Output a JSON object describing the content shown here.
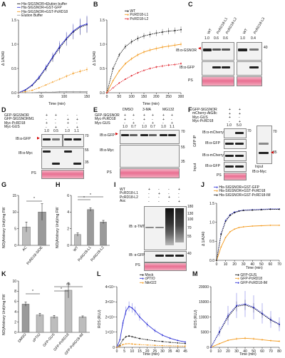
{
  "panels": {
    "A": {
      "letter": "A",
      "legend": [
        "His-SlGSNOR+Elution buffer",
        "His-SlGSNOR+GST-GFP",
        "His-SlGSNOR+GST-PcRD18",
        "Elution Buffer"
      ],
      "ylabel": "Δ 1/A340",
      "xlabel": "Time (min)",
      "yticks": [
        "0.0",
        "0.5",
        "1.0",
        "1.5"
      ],
      "xticks": [
        "0",
        "50",
        "100",
        "150"
      ]
    },
    "B": {
      "letter": "B",
      "legend": [
        "WT",
        "PcRD18-L1",
        "PcRD18-L2"
      ],
      "ylabel": "Δ 1/A340",
      "xlabel": "Time (min)",
      "yticks": [
        "0.0",
        "0.5",
        "1.0",
        "1.5"
      ],
      "xticks": [
        "0",
        "50",
        "100",
        "150",
        "200",
        "250",
        "300"
      ]
    },
    "C": {
      "letter": "C",
      "lanes": [
        "WT",
        "PcRD18-L1",
        "PcRD18-L2",
        "WT",
        "PcRD18-L3"
      ],
      "ratios": [
        "1.0",
        "0.6",
        "0.6",
        "1.0",
        "0.4"
      ],
      "blots": [
        "IB:α-GSNOR",
        "IB:α-GFP",
        "PS"
      ],
      "mw": [
        "40"
      ]
    },
    "D": {
      "letter": "D",
      "rows": [
        "GFP-SlGSNOR",
        "GFP-SlGSNORM1",
        "Myc-PcRD18",
        "Myc-GUS"
      ],
      "signs": [
        [
          "+",
          "+",
          "-",
          "-"
        ],
        [
          "-",
          "-",
          "+",
          "+"
        ],
        [
          "+",
          "-",
          "+",
          "-"
        ],
        [
          "-",
          "+",
          "-",
          "+"
        ]
      ],
      "ratios": [
        "1.0",
        "0.5",
        "1.0",
        "1.1"
      ],
      "blots": [
        "IB:α-GFP",
        "IB:α-Myc",
        "PS"
      ],
      "mw": [
        "70",
        "55",
        "35"
      ]
    },
    "E": {
      "letter": "E",
      "treatments": [
        "DMSO",
        "3-MA",
        "MG132"
      ],
      "rows": [
        "GFP-SlGSNOR",
        "Myc-PcRD18",
        "Myc-GUS"
      ],
      "signs": [
        [
          "+",
          "+",
          "+",
          "+",
          "+",
          "+"
        ],
        [
          "+",
          "-",
          "+",
          "-",
          "+",
          "-"
        ],
        [
          "-",
          "+",
          "-",
          "+",
          "-",
          "+"
        ]
      ],
      "ratios": [
        "1.0",
        "0.7",
        "1.0",
        "0.7",
        "1.0",
        "1.1"
      ],
      "blots": [
        "IB:α-GFP",
        "IB:α-Myc",
        "PS"
      ],
      "mw": [
        "70",
        "55",
        "35"
      ]
    },
    "F": {
      "letter": "F",
      "rows": [
        "GFP-SlGSNOR",
        "mCherry-AtG8c",
        "Myc-GUS",
        "Myc-PcRD18"
      ],
      "signs": [
        [
          "+",
          "+"
        ],
        [
          "+",
          "+"
        ],
        [
          "+",
          "-"
        ],
        [
          "-",
          "+"
        ]
      ],
      "ratios": [
        "1.0",
        "5.0"
      ],
      "blots": [
        "IB:α-mCherry",
        "IB:α-GFP",
        "IB:α-mCherry",
        "IB:α-GFP",
        "PS"
      ],
      "side": [
        "GFP IP",
        "Input"
      ],
      "inset": [
        "Input",
        "IB:α-Myc"
      ],
      "mw": [
        "70",
        "35"
      ]
    },
    "G": {
      "letter": "G",
      "ylabel": "NO(Arbitrary Unit)/mg FW",
      "categories": [
        "AC",
        "PcRD18-SlOE"
      ],
      "yticks": [
        "0",
        "5",
        "10",
        "15"
      ],
      "sig": "*"
    },
    "H": {
      "letter": "H",
      "ylabel": "NO(Arbitrary Unit)/mg FW",
      "categories": [
        "WT",
        "PcRD18-L1",
        "PcRD18-L2"
      ],
      "yticks": [
        "0",
        "2",
        "4",
        "6"
      ],
      "sig": "*"
    },
    "I": {
      "letter": "I",
      "rows": [
        "WT",
        "PcRD18-L1",
        "PcRD18-L2",
        "Asc"
      ],
      "signs": [
        [
          "+",
          "-",
          "-",
          "+"
        ],
        [
          "-",
          "+",
          "-",
          "-"
        ],
        [
          "-",
          "-",
          "+",
          "-"
        ],
        [
          "-",
          "-",
          "-",
          "+"
        ]
      ],
      "blots": [
        "IB: α-TMT",
        "IB: α-GFP",
        "PS"
      ],
      "mw": [
        "180",
        "130",
        "100",
        "70",
        "55",
        "40"
      ]
    },
    "J": {
      "letter": "J",
      "legend": [
        "His-SlGSNOR+GST-GFP",
        "His-SlGSNOR+GST-PcRD18",
        "His-SlGSNOR+GST-PcRD18-IM"
      ],
      "ylabel": "Δ 1/A340",
      "xlabel": "Time (min)",
      "yticks": [
        "0.0",
        "0.5",
        "1.0",
        "1.5"
      ],
      "xticks": [
        "0",
        "10",
        "20",
        "30",
        "40",
        "50",
        "60",
        "70"
      ]
    },
    "K": {
      "letter": "K",
      "ylabel": "NO(Arbitrary Unit)/mg FW",
      "categories": [
        "DMSO",
        "cPTIO",
        "GFP-GUS",
        "GFP-PcRD18",
        "GFP-PcRD18-IM"
      ],
      "yticks": [
        "0",
        "2",
        "4",
        "6",
        "8",
        "10"
      ],
      "sig": [
        "*",
        "ns"
      ]
    },
    "L": {
      "letter": "L",
      "legend": [
        "Mock",
        "cPTIO",
        "Nitr022"
      ],
      "ylabel": "ROS (RLU)",
      "xlabel": "Time (min)",
      "yticks": [
        "0",
        "1×10⁴",
        "2×10⁴",
        "3×10⁴",
        "4×10⁴"
      ],
      "xticks": [
        "0",
        "5",
        "10",
        "15",
        "20",
        "25",
        "30",
        "35",
        "40",
        "45"
      ]
    },
    "M": {
      "letter": "M",
      "legend": [
        "GFP-GUS",
        "GFP-PcRD18",
        "GFP-PcRD18-IM"
      ],
      "ylabel": "ROS (RLU)",
      "xlabel": "Time (min)",
      "yticks": [
        "0",
        "5000",
        "10000",
        "15000",
        "20000"
      ],
      "xticks": [
        "0",
        "10",
        "20",
        "30",
        "40",
        "50",
        "60",
        "70",
        "80"
      ]
    }
  },
  "colors": {
    "blue": "#2b2fd6",
    "orange": "#f39a1e",
    "red": "#e0202a",
    "black": "#111111",
    "gray": "#9a9a9a",
    "teal": "#2a9fa8",
    "pink": "#e96f92"
  },
  "chart_data": [
    {
      "panel": "A",
      "type": "line",
      "xlabel": "Time (min)",
      "ylabel": "Δ 1/A340",
      "xlim": [
        0,
        150
      ],
      "ylim": [
        0,
        1.5
      ],
      "series": [
        {
          "name": "His-SlGSNOR+Elution buffer",
          "x": [
            0,
            15,
            30,
            45,
            60,
            75,
            90,
            105,
            120,
            135,
            150
          ],
          "values": [
            0,
            0.05,
            0.15,
            0.3,
            0.5,
            0.72,
            0.92,
            1.1,
            1.25,
            1.35,
            1.4
          ]
        },
        {
          "name": "His-SlGSNOR+GST-GFP",
          "x": [
            0,
            15,
            30,
            45,
            60,
            75,
            90,
            105,
            120,
            135,
            150
          ],
          "values": [
            0,
            0.06,
            0.16,
            0.32,
            0.52,
            0.74,
            0.95,
            1.12,
            1.27,
            1.37,
            1.42
          ]
        },
        {
          "name": "His-SlGSNOR+GST-PcRD18",
          "x": [
            0,
            15,
            30,
            45,
            60,
            75,
            90,
            105,
            120,
            135,
            150
          ],
          "values": [
            0,
            0.02,
            0.05,
            0.1,
            0.16,
            0.22,
            0.28,
            0.34,
            0.4,
            0.44,
            0.48
          ]
        },
        {
          "name": "Elution Buffer",
          "x": [
            0,
            15,
            30,
            45,
            60,
            75,
            90,
            105,
            120,
            135,
            150
          ],
          "values": [
            0,
            0,
            0,
            0.01,
            0.01,
            0.01,
            0.02,
            0.02,
            0.02,
            0.02,
            0.02
          ]
        }
      ]
    },
    {
      "panel": "B",
      "type": "line",
      "xlabel": "Time (min)",
      "ylabel": "Δ 1/A340",
      "xlim": [
        0,
        300
      ],
      "ylim": [
        0,
        1.5
      ],
      "series": [
        {
          "name": "WT",
          "x": [
            0,
            25,
            50,
            75,
            100,
            125,
            150,
            175,
            200,
            225,
            250,
            275,
            300
          ],
          "values": [
            0,
            0.5,
            0.78,
            0.95,
            1.05,
            1.12,
            1.17,
            1.2,
            1.23,
            1.25,
            1.27,
            1.28,
            1.3
          ]
        },
        {
          "name": "PcRD18-L1",
          "x": [
            0,
            25,
            50,
            75,
            100,
            125,
            150,
            175,
            200,
            225,
            250,
            275,
            300
          ],
          "values": [
            0,
            0.25,
            0.45,
            0.6,
            0.7,
            0.78,
            0.84,
            0.88,
            0.91,
            0.94,
            0.96,
            0.98,
            1.0
          ]
        },
        {
          "name": "PcRD18-L2",
          "x": [
            0,
            25,
            50,
            75,
            100,
            125,
            150,
            175,
            200,
            225,
            250,
            275,
            300
          ],
          "values": [
            0,
            0.1,
            0.2,
            0.28,
            0.35,
            0.41,
            0.46,
            0.5,
            0.53,
            0.55,
            0.57,
            0.58,
            0.6
          ]
        }
      ]
    },
    {
      "panel": "G",
      "type": "bar",
      "categories": [
        "AC",
        "PcRD18-SlOE"
      ],
      "values": [
        5.5,
        10
      ],
      "ylim": [
        0,
        15
      ],
      "ylabel": "NO(Arbitrary Unit)/mg FW"
    },
    {
      "panel": "H",
      "type": "bar",
      "categories": [
        "WT",
        "PcRD18-L1",
        "PcRD18-L2"
      ],
      "values": [
        1.3,
        4.3,
        2.8
      ],
      "ylim": [
        0,
        6
      ],
      "ylabel": "NO(Arbitrary Unit)/mg FW"
    },
    {
      "panel": "J",
      "type": "line",
      "xlabel": "Time (min)",
      "ylabel": "Δ 1/A340",
      "xlim": [
        0,
        70
      ],
      "ylim": [
        0,
        1.5
      ],
      "series": [
        {
          "name": "His-SlGSNOR+GST-GFP",
          "x": [
            0,
            5,
            10,
            15,
            20,
            25,
            30,
            40,
            50,
            60,
            70
          ],
          "values": [
            0,
            0.7,
            1.05,
            1.2,
            1.27,
            1.3,
            1.32,
            1.33,
            1.34,
            1.35,
            1.35
          ]
        },
        {
          "name": "His-SlGSNOR+GST-PcRD18",
          "x": [
            0,
            5,
            10,
            15,
            20,
            25,
            30,
            40,
            50,
            60,
            70
          ],
          "values": [
            0,
            0.35,
            0.6,
            0.75,
            0.82,
            0.86,
            0.88,
            0.9,
            0.91,
            0.92,
            0.92
          ]
        },
        {
          "name": "His-SlGSNOR+GST-PcRD18-IM",
          "x": [
            0,
            5,
            10,
            15,
            20,
            25,
            30,
            40,
            50,
            60,
            70
          ],
          "values": [
            0,
            0.68,
            1.02,
            1.18,
            1.25,
            1.29,
            1.31,
            1.32,
            1.33,
            1.34,
            1.34
          ]
        }
      ]
    },
    {
      "panel": "K",
      "type": "bar",
      "categories": [
        "DMSO",
        "cPTIO",
        "GFP-GUS",
        "GFP-PcRD18",
        "GFP-PcRD18-IM"
      ],
      "values": [
        5.5,
        3.4,
        3.0,
        8.2,
        3.0
      ],
      "ylim": [
        0,
        10
      ],
      "ylabel": "NO(Arbitrary Unit)/mg FW"
    },
    {
      "panel": "L",
      "type": "line",
      "xlabel": "Time (min)",
      "ylabel": "ROS (RLU)",
      "xlim": [
        0,
        45
      ],
      "ylim": [
        0,
        40000
      ],
      "series": [
        {
          "name": "Mock",
          "x": [
            0,
            2,
            4,
            6,
            8,
            10,
            12,
            15,
            20,
            25,
            30,
            35,
            40,
            45
          ],
          "values": [
            0,
            1500,
            5000,
            7000,
            7500,
            7000,
            6500,
            5800,
            5000,
            4300,
            3800,
            3300,
            2900,
            2500
          ]
        },
        {
          "name": "cPTIO",
          "x": [
            0,
            2,
            4,
            6,
            8,
            10,
            12,
            15,
            20,
            25,
            30,
            35,
            40,
            45
          ],
          "values": [
            0,
            5000,
            16000,
            24000,
            27000,
            26000,
            24000,
            20000,
            15000,
            11000,
            8000,
            6000,
            4500,
            3500
          ]
        },
        {
          "name": "Nitr022",
          "x": [
            0,
            2,
            4,
            6,
            8,
            10,
            12,
            15,
            20,
            25,
            30,
            35,
            40,
            45
          ],
          "values": [
            0,
            700,
            1800,
            2300,
            2400,
            2200,
            2000,
            1800,
            1500,
            1300,
            1100,
            1000,
            900,
            800
          ]
        }
      ]
    },
    {
      "panel": "M",
      "type": "line",
      "xlabel": "Time (min)",
      "ylabel": "ROS (RLU)",
      "xlim": [
        0,
        80
      ],
      "ylim": [
        0,
        20000
      ],
      "series": [
        {
          "name": "GFP-GUS",
          "x": [
            0,
            10,
            20,
            30,
            40,
            50,
            60,
            70,
            80
          ],
          "values": [
            0,
            5000,
            10000,
            13500,
            14000,
            13000,
            11000,
            9000,
            7500
          ]
        },
        {
          "name": "GFP-PcRD18",
          "x": [
            0,
            10,
            20,
            30,
            40,
            50,
            60,
            70,
            80
          ],
          "values": [
            0,
            1200,
            2300,
            2800,
            3000,
            2800,
            2500,
            2200,
            2000
          ]
        },
        {
          "name": "GFP-PcRD18-IM",
          "x": [
            0,
            10,
            20,
            30,
            40,
            50,
            60,
            70,
            80
          ],
          "values": [
            0,
            5200,
            10500,
            13800,
            14300,
            13200,
            11200,
            9200,
            7600
          ]
        }
      ]
    }
  ]
}
